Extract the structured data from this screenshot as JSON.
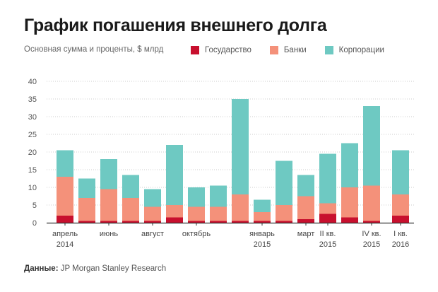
{
  "title": "График погашения внешнего долга",
  "subtitle": "Основная сумма и проценты, $ млрд",
  "source": {
    "label": "Данные:",
    "text": "JP Morgan Stanley Research"
  },
  "colors": {
    "state": "#c8102e",
    "banks": "#f4917a",
    "corporations": "#6ec9c2",
    "grid": "#cccccc",
    "axis": "#333333"
  },
  "chart_data": {
    "type": "bar",
    "stacked": true,
    "title": "График погашения внешнего долга",
    "ylabel": "Основная сумма и проценты, $ млрд",
    "ylim": [
      0,
      40
    ],
    "yticks": [
      0,
      5,
      10,
      15,
      20,
      25,
      30,
      35,
      40
    ],
    "grid": true,
    "legend_position": "top-right",
    "categories": [
      "апрель 2014",
      "",
      "июнь",
      "",
      "август",
      "",
      "октябрь",
      "",
      "",
      "январь 2015",
      "",
      "март",
      "II кв. 2015",
      "",
      "IV кв. 2015",
      "I кв. 2016"
    ],
    "x_tick_labels": [
      {
        "bar": 0,
        "lines": [
          "апрель",
          "2014"
        ]
      },
      {
        "bar": 2,
        "lines": [
          "июнь"
        ]
      },
      {
        "bar": 4,
        "lines": [
          "август"
        ]
      },
      {
        "bar": 6,
        "lines": [
          "октябрь"
        ]
      },
      {
        "bar": 9,
        "lines": [
          "январь",
          "2015"
        ]
      },
      {
        "bar": 11,
        "lines": [
          "март"
        ]
      },
      {
        "bar": 12,
        "lines": [
          "II кв.",
          "2015"
        ]
      },
      {
        "bar": 14,
        "lines": [
          "IV кв.",
          "2015"
        ]
      },
      {
        "bar": 15,
        "lines": [
          "I кв.",
          "2016"
        ]
      }
    ],
    "gap_after_bar": 14,
    "series": [
      {
        "name": "Государство",
        "color_key": "state",
        "values": [
          2,
          0.5,
          0.5,
          0.5,
          0.5,
          1.5,
          0.5,
          0.5,
          0.5,
          0.5,
          0.5,
          1,
          2.5,
          1.5,
          0.5,
          2
        ]
      },
      {
        "name": "Банки",
        "color_key": "banks",
        "values": [
          11,
          6.5,
          9,
          6.5,
          4,
          3.5,
          4,
          4,
          7.5,
          2.5,
          4.5,
          6.5,
          3,
          8.5,
          10,
          6
        ]
      },
      {
        "name": "Корпорации",
        "color_key": "corporations",
        "values": [
          7.5,
          5.5,
          8.5,
          6.5,
          5,
          17,
          5.5,
          6,
          27,
          3.5,
          12.5,
          6,
          14,
          12.5,
          22.5,
          12.5
        ]
      }
    ]
  }
}
